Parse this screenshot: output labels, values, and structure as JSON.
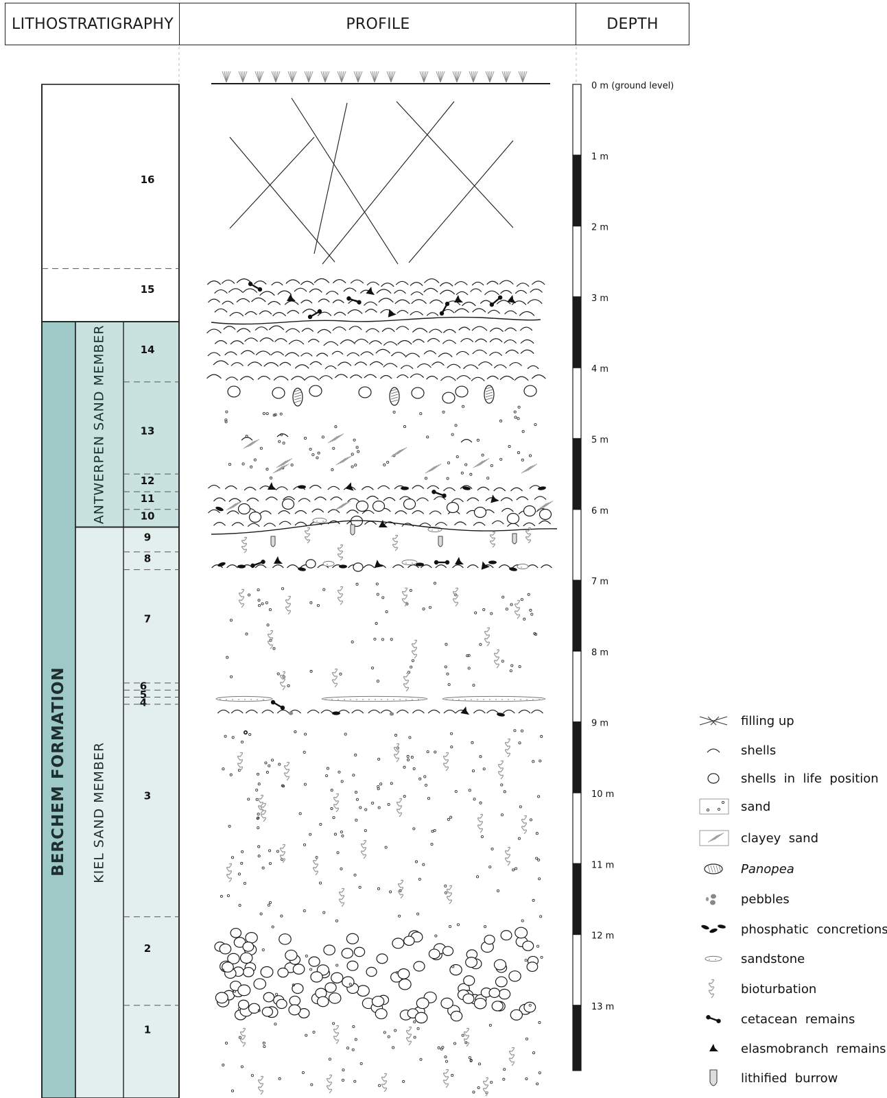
{
  "headers": {
    "lithostratigraphy": "LITHOSTRATIGRAPHY",
    "profile": "PROFILE",
    "depth": "DEPTH"
  },
  "formation": "BERCHEM FORMATION",
  "members": [
    {
      "name": "ANTWERPEN SAND MEMBER",
      "top_m": 3.35,
      "bottom_m": 6.25
    },
    {
      "name": "KIEL SAND MEMBER",
      "top_m": 6.25,
      "bottom_m": 14.0
    }
  ],
  "units": [
    {
      "label": "16",
      "top_m": 0.0,
      "bottom_m": 2.6,
      "label_m": 1.35
    },
    {
      "label": "15",
      "top_m": 2.6,
      "bottom_m": 3.35,
      "label_m": 2.9
    },
    {
      "label": "14",
      "top_m": 3.35,
      "bottom_m": 4.2,
      "label_m": 3.75
    },
    {
      "label": "13",
      "top_m": 4.2,
      "bottom_m": 5.5,
      "label_m": 4.9
    },
    {
      "label": "12",
      "top_m": 5.5,
      "bottom_m": 5.75,
      "label_m": 5.6
    },
    {
      "label": "11",
      "top_m": 5.75,
      "bottom_m": 6.0,
      "label_m": 5.85
    },
    {
      "label": "10",
      "top_m": 6.0,
      "bottom_m": 6.25,
      "label_m": 6.1
    },
    {
      "label": "9",
      "top_m": 6.25,
      "bottom_m": 6.6,
      "label_m": 6.4
    },
    {
      "label": "8",
      "top_m": 6.6,
      "bottom_m": 6.85,
      "label_m": 6.7
    },
    {
      "label": "7",
      "top_m": 6.85,
      "bottom_m": 8.45,
      "label_m": 7.55
    },
    {
      "label": "6",
      "top_m": 8.45,
      "bottom_m": 8.55,
      "label_m": 8.5
    },
    {
      "label": "5",
      "top_m": 8.55,
      "bottom_m": 8.65,
      "label_m": 8.62
    },
    {
      "label": "4",
      "top_m": 8.65,
      "bottom_m": 8.75,
      "label_m": 8.73
    },
    {
      "label": "3",
      "top_m": 8.75,
      "bottom_m": 11.75,
      "label_m": 10.05
    },
    {
      "label": "2",
      "top_m": 11.75,
      "bottom_m": 13.0,
      "label_m": 12.2
    },
    {
      "label": "1",
      "top_m": 13.0,
      "bottom_m": 14.0,
      "label_m": 13.35
    }
  ],
  "depth_scale": {
    "ticks": [
      "0 m  (ground level)",
      "1 m",
      "2 m",
      "3 m",
      "4 m",
      "5 m",
      "6 m",
      "7 m",
      "8 m",
      "9 m",
      "10 m",
      "11 m",
      "12 m",
      "13 m"
    ]
  },
  "legend": [
    {
      "icon": "filling-up-icon",
      "label": "filling up"
    },
    {
      "icon": "shell-icon",
      "label": "shells"
    },
    {
      "icon": "shell-life-position-icon",
      "label": "shells  in  life  position"
    },
    {
      "icon": "sand-icon",
      "label": "sand"
    },
    {
      "icon": "clayey-sand-icon",
      "label": "clayey  sand"
    },
    {
      "icon": "panopea-icon",
      "label": "Panopea",
      "italic": true
    },
    {
      "icon": "pebbles-icon",
      "label": "pebbles"
    },
    {
      "icon": "phosphatic-concretion-icon",
      "label": "phosphatic  concretions"
    },
    {
      "icon": "sandstone-icon",
      "label": "sandstone"
    },
    {
      "icon": "bioturbation-icon",
      "label": "bioturbation"
    },
    {
      "icon": "cetacean-remains-icon",
      "label": "cetacean  remains"
    },
    {
      "icon": "elasmobranch-remains-icon",
      "label": "elasmobranch  remains"
    },
    {
      "icon": "lithified-burrow-icon",
      "label": "lithified  burrow"
    }
  ],
  "colors": {
    "formation_fill": "#9ec9c6",
    "antwerpen_fill": "#c9e2e0",
    "kiel_fill": "#e2efed",
    "ink": "#1a1a1a",
    "trace": "#9a9a9a"
  }
}
